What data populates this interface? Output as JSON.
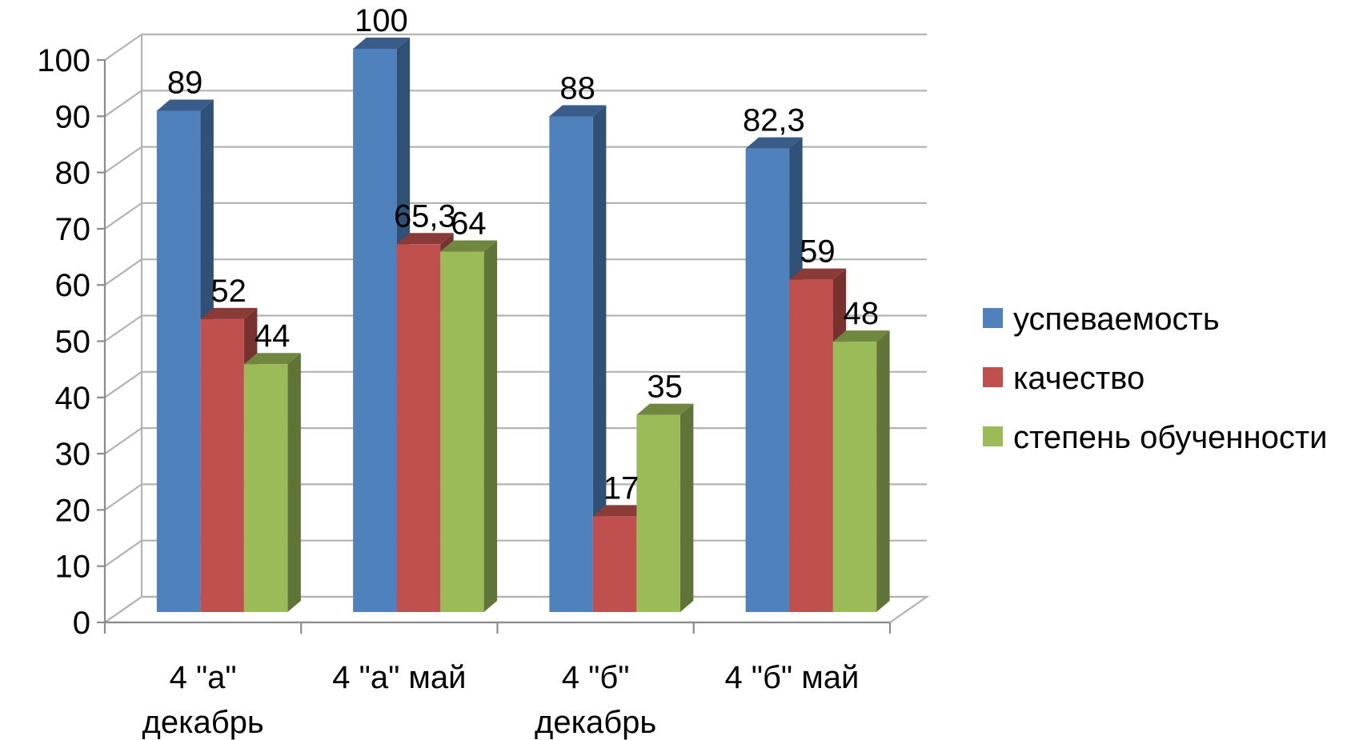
{
  "chart_data": {
    "type": "bar",
    "title": "",
    "xlabel": "",
    "ylabel": "",
    "ylim": [
      0,
      100
    ],
    "y_ticks": [
      0,
      10,
      20,
      30,
      40,
      50,
      60,
      70,
      80,
      90,
      100
    ],
    "grid": true,
    "legend_position": "right",
    "categories": [
      [
        "4 \"а\"",
        "декабрь"
      ],
      [
        "4 \"а\" май"
      ],
      [
        "4 \"б\"",
        "декабрь"
      ],
      [
        "4 \"б\" май"
      ]
    ],
    "series": [
      {
        "name": "успеваемость",
        "color": "#4F81BD",
        "values": [
          89,
          100,
          88,
          82.3
        ],
        "labels": [
          "89",
          "100",
          "88",
          "82,3"
        ]
      },
      {
        "name": "качество",
        "color": "#C0504D",
        "values": [
          52,
          65.3,
          17,
          59
        ],
        "labels": [
          "52",
          "65,3",
          "17",
          "59"
        ]
      },
      {
        "name": "степень обученности",
        "color": "#9BBB59",
        "values": [
          44,
          64,
          35,
          48
        ],
        "labels": [
          "44",
          "64",
          "35",
          "48"
        ]
      }
    ]
  }
}
